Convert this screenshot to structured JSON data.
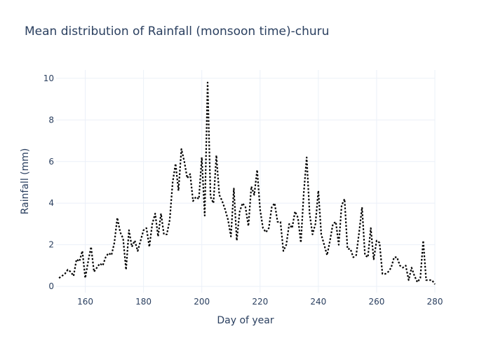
{
  "chart_data": {
    "type": "line",
    "title": "Mean distribution of Rainfall (monsoon time)-churu",
    "xlabel": "Day of year",
    "ylabel": "Rainfall (mm)",
    "xlim": [
      150,
      280
    ],
    "ylim": [
      -0.3,
      10.4
    ],
    "xticks": [
      160,
      180,
      200,
      220,
      240,
      260,
      280
    ],
    "yticks": [
      0,
      2,
      4,
      6,
      8,
      10
    ],
    "grid": true,
    "line_color": "#000000",
    "line_style": "dotted",
    "series": [
      {
        "x": [
          151,
          152,
          153,
          154,
          155,
          156,
          157,
          158,
          159,
          160,
          161,
          162,
          163,
          164,
          165,
          166,
          167,
          168,
          169,
          170,
          171,
          172,
          173,
          174,
          175,
          176,
          177,
          178,
          179,
          180,
          181,
          182,
          183,
          184,
          185,
          186,
          187,
          188,
          189,
          190,
          191,
          192,
          193,
          194,
          195,
          196,
          197,
          198,
          199,
          200,
          201,
          202,
          203,
          204,
          205,
          206,
          207,
          208,
          209,
          210,
          211,
          212,
          213,
          214,
          215,
          216,
          217,
          218,
          219,
          220,
          221,
          222,
          223,
          224,
          225,
          226,
          227,
          228,
          229,
          230,
          231,
          232,
          233,
          234,
          235,
          236,
          237,
          238,
          239,
          240,
          241,
          242,
          243,
          244,
          245,
          246,
          247,
          248,
          249,
          250,
          251,
          252,
          253,
          254,
          255,
          256,
          257,
          258,
          259,
          260,
          261,
          262,
          263,
          264,
          265,
          266,
          267,
          268,
          269,
          270,
          271,
          272,
          273,
          274,
          275,
          276,
          277,
          278,
          279,
          280
        ],
        "values": [
          0.4,
          0.5,
          0.6,
          0.8,
          0.7,
          0.5,
          1.3,
          1.2,
          1.7,
          0.4,
          1.2,
          1.9,
          0.7,
          0.9,
          1.1,
          1.0,
          1.4,
          1.6,
          1.5,
          2.1,
          3.3,
          2.6,
          2.3,
          0.8,
          2.7,
          1.9,
          2.2,
          1.7,
          2.2,
          2.7,
          2.8,
          1.9,
          3.0,
          3.5,
          2.4,
          3.5,
          2.5,
          2.5,
          3.2,
          5.0,
          5.9,
          4.6,
          6.6,
          6.0,
          5.2,
          5.4,
          4.1,
          4.3,
          4.2,
          6.2,
          3.4,
          9.8,
          4.3,
          4.0,
          6.3,
          4.4,
          4.1,
          3.7,
          3.2,
          2.4,
          4.7,
          2.2,
          3.6,
          4.0,
          3.8,
          2.9,
          4.8,
          4.4,
          5.6,
          3.7,
          2.8,
          2.6,
          2.8,
          3.8,
          4.0,
          3.1,
          3.1,
          1.7,
          2.0,
          3.0,
          2.8,
          3.6,
          3.3,
          2.1,
          4.5,
          6.2,
          3.5,
          2.5,
          3.0,
          4.6,
          2.5,
          2.0,
          1.5,
          2.2,
          3.0,
          3.1,
          2.0,
          3.9,
          4.2,
          1.8,
          1.8,
          1.4,
          1.5,
          2.6,
          3.8,
          1.5,
          1.4,
          2.8,
          1.3,
          2.2,
          2.1,
          0.6,
          0.6,
          0.7,
          0.9,
          1.4,
          1.4,
          1.0,
          0.9,
          1.0,
          0.3,
          0.9,
          0.5,
          0.2,
          0.4,
          2.2,
          0.3,
          0.3,
          0.3,
          0.1
        ]
      }
    ]
  }
}
